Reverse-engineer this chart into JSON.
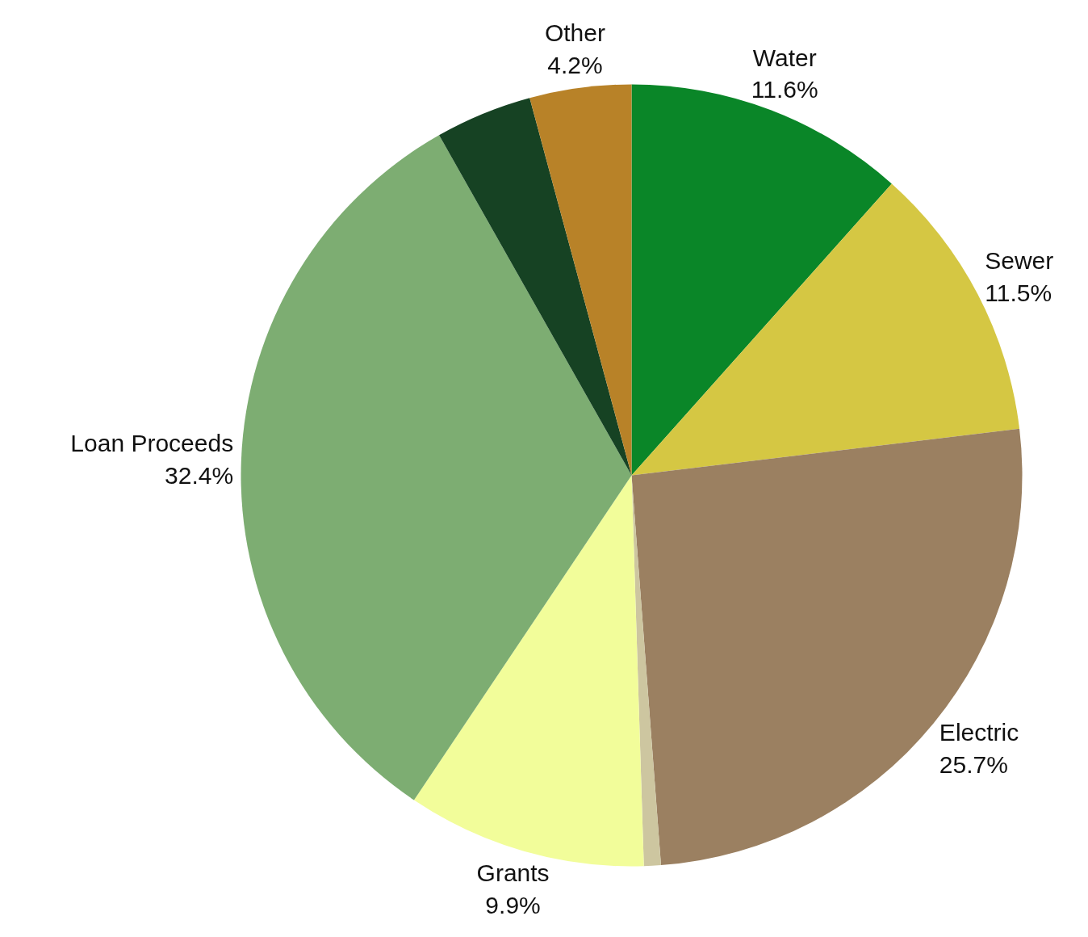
{
  "chart_data": {
    "type": "pie",
    "categories": [
      "Water",
      "Sewer",
      "Electric",
      null,
      "Grants",
      "Loan Proceeds",
      null,
      "Other"
    ],
    "values": [
      11.6,
      11.5,
      25.7,
      0.7,
      9.9,
      32.4,
      4.0,
      4.2
    ],
    "colors": [
      "#0a8628",
      "#d5c743",
      "#9b8061",
      "#cdc6a0",
      "#f2fd9a",
      "#7dad72",
      "#164223",
      "#b88228"
    ],
    "value_labels": [
      "11.6%",
      "11.5%",
      "25.7%",
      null,
      "9.9%",
      "32.4%",
      null,
      "4.2%"
    ]
  }
}
